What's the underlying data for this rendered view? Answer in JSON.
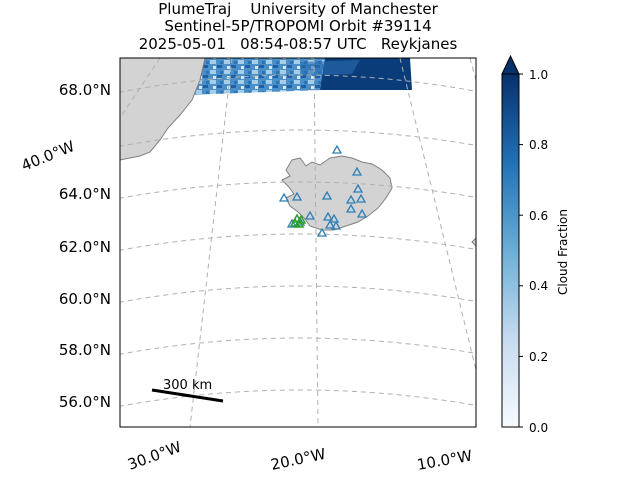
{
  "title": {
    "line1": "PlumeTraj    University of Manchester",
    "line2": "Sentinel-5P/TROPOMI Orbit #39114",
    "line3": "2025-05-01   08:54-08:57 UTC   Reykjanes"
  },
  "lat_labels": [
    "68.0°N",
    "64.0°N",
    "62.0°N",
    "60.0°N",
    "58.0°N",
    "56.0°N"
  ],
  "lon_labels": [
    "30.0°W",
    "20.0°W",
    "10.0°W"
  ],
  "side_lon_label": "40.0°W",
  "scale_bar": {
    "label": "300 km"
  },
  "colorbar": {
    "label": "Cloud Fraction",
    "ticks": [
      "0.0",
      "0.2",
      "0.4",
      "0.6",
      "0.8",
      "1.0"
    ],
    "colormap": "Blues",
    "extend": "max"
  },
  "colors": {
    "land": "#d3d3d3",
    "coast": "#808080",
    "grid": "#b0b0b0",
    "volcano_marker": "#2c7fb8",
    "vent_marker": "#2ca02c"
  }
}
